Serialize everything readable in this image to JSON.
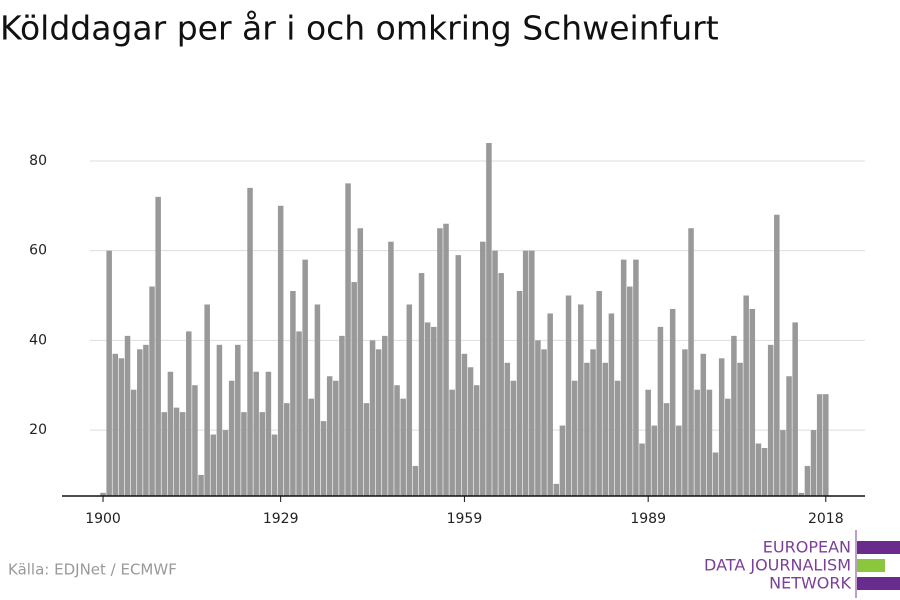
{
  "chart_data": {
    "type": "bar",
    "title": "Kölddagar per år i och omkring Schweinfurt",
    "source": "Källa: EDJNet / ECMWF",
    "logo": [
      "EUROPEAN",
      "DATA JOURNALISM",
      "NETWORK"
    ],
    "color": "#999999",
    "grid": true,
    "x": [
      1900,
      1901,
      1902,
      1903,
      1904,
      1905,
      1906,
      1907,
      1908,
      1909,
      1910,
      1911,
      1912,
      1913,
      1914,
      1915,
      1916,
      1917,
      1918,
      1919,
      1920,
      1921,
      1922,
      1923,
      1924,
      1925,
      1926,
      1927,
      1928,
      1929,
      1930,
      1931,
      1932,
      1933,
      1934,
      1935,
      1936,
      1937,
      1938,
      1939,
      1940,
      1941,
      1942,
      1943,
      1944,
      1945,
      1946,
      1947,
      1948,
      1949,
      1950,
      1951,
      1952,
      1953,
      1954,
      1955,
      1956,
      1957,
      1958,
      1959,
      1960,
      1961,
      1962,
      1963,
      1964,
      1965,
      1966,
      1967,
      1968,
      1969,
      1970,
      1971,
      1972,
      1973,
      1974,
      1975,
      1976,
      1977,
      1978,
      1979,
      1980,
      1981,
      1982,
      1983,
      1984,
      1985,
      1986,
      1987,
      1988,
      1989,
      1990,
      1991,
      1992,
      1993,
      1994,
      1995,
      1996,
      1997,
      1998,
      1999,
      2000,
      2001,
      2002,
      2003,
      2004,
      2005,
      2006,
      2007,
      2008,
      2009,
      2010,
      2011,
      2012,
      2013,
      2014,
      2015,
      2016,
      2017,
      2018
    ],
    "values": [
      6,
      60,
      37,
      36,
      41,
      29,
      38,
      39,
      52,
      72,
      24,
      33,
      25,
      24,
      42,
      30,
      10,
      48,
      19,
      39,
      20,
      31,
      39,
      24,
      74,
      33,
      24,
      33,
      19,
      70,
      26,
      51,
      42,
      58,
      27,
      48,
      22,
      32,
      31,
      41,
      75,
      53,
      65,
      26,
      40,
      38,
      41,
      62,
      30,
      27,
      48,
      12,
      55,
      44,
      43,
      65,
      66,
      29,
      59,
      37,
      34,
      30,
      62,
      84,
      60,
      55,
      35,
      31,
      51,
      60,
      60,
      40,
      38,
      46,
      8,
      21,
      50,
      31,
      48,
      35,
      38,
      51,
      35,
      46,
      31,
      58,
      52,
      58,
      17,
      29,
      21,
      43,
      26,
      47,
      21,
      38,
      65,
      29,
      37,
      29,
      15,
      36,
      27,
      41,
      35,
      50,
      47,
      17,
      16,
      39,
      68,
      20,
      32,
      44,
      6,
      12,
      20,
      28,
      28
    ],
    "xlim": [
      1893.3,
      2024.4
    ],
    "xticks": [
      1900,
      1929,
      1959,
      1989,
      2018
    ],
    "ylim": [
      5.3,
      86.9
    ],
    "yticks": [
      20,
      40,
      60,
      80
    ]
  }
}
